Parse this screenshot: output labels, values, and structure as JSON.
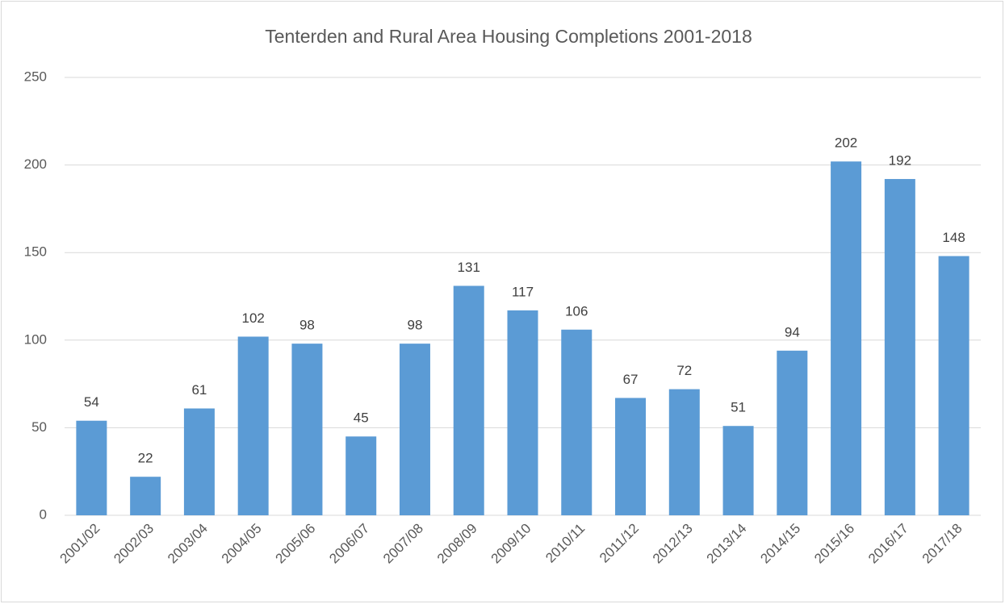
{
  "chart_data": {
    "type": "bar",
    "title": "Tenterden and Rural Area Housing Completions 2001-2018",
    "categories": [
      "2001/02",
      "2002/03",
      "2003/04",
      "2004/05",
      "2005/06",
      "2006/07",
      "2007/08",
      "2008/09",
      "2009/10",
      "2010/11",
      "2011/12",
      "2012/13",
      "2013/14",
      "2014/15",
      "2015/16",
      "2016/17",
      "2017/18"
    ],
    "values": [
      54,
      22,
      61,
      102,
      98,
      45,
      98,
      131,
      117,
      106,
      67,
      72,
      51,
      94,
      202,
      192,
      148
    ],
    "color": "#5b9bd5",
    "ylim": [
      0,
      250
    ],
    "yticks": [
      0,
      50,
      100,
      150,
      200,
      250
    ],
    "grid": true
  }
}
